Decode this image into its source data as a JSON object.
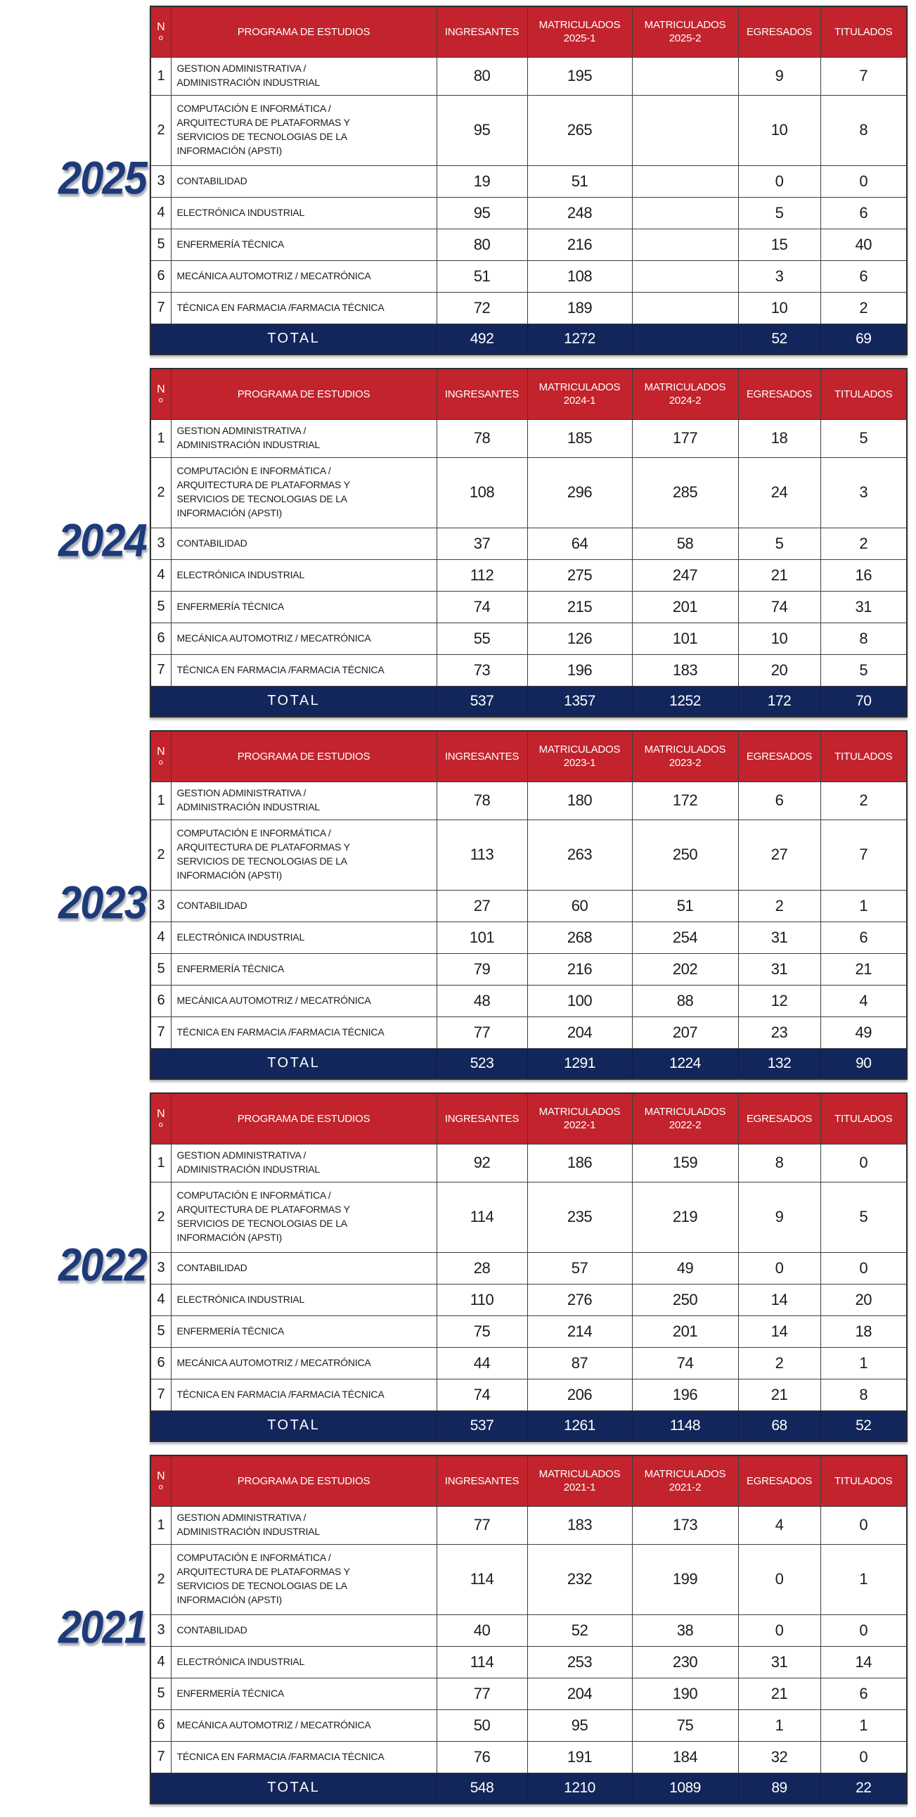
{
  "colors": {
    "header_bg": "#c2232c",
    "header_text": "#ffffff",
    "total_bg": "#13265b",
    "total_text": "#ffffff",
    "year_label": "#1d3a7a",
    "cell_text": "#1b1b1b",
    "border": "#3d3d3d"
  },
  "no_header": "N\no",
  "row_numbers": [
    "1",
    "2",
    "3",
    "4",
    "5",
    "6",
    "7"
  ],
  "programs": [
    "GESTION ADMINISTRATIVA /\nADMINISTRACIÓN INDUSTRIAL",
    "COMPUTACIÓN E INFORMÁTICA /\nARQUITECTURA DE PLATAFORMAS Y\nSERVICIOS DE TECNOLOGIAS DE LA\nINFORMACIÓN (APSTI)",
    "CONTABILIDAD",
    "ELECTRÓNICA INDUSTRIAL",
    "ENFERMERÍA TÉCNICA",
    "MECÁNICA AUTOMOTRIZ / MECATRÓNICA",
    "TÉCNICA EN FARMACIA /FARMACIA TÉCNICA"
  ],
  "tables": [
    {
      "year": "2025",
      "headers": [
        "PROGRAMA DE ESTUDIOS",
        "INGRESANTES",
        "MATRICULADOS\n2025-1",
        "MATRICULADOS\n2025-2",
        "EGRESADOS",
        "TITULADOS"
      ],
      "rows": [
        [
          "80",
          "195",
          "",
          "9",
          "7"
        ],
        [
          "95",
          "265",
          "",
          "10",
          "8"
        ],
        [
          "19",
          "51",
          "",
          "0",
          "0"
        ],
        [
          "95",
          "248",
          "",
          "5",
          "6"
        ],
        [
          "80",
          "216",
          "",
          "15",
          "40"
        ],
        [
          "51",
          "108",
          "",
          "3",
          "6"
        ],
        [
          "72",
          "189",
          "",
          "10",
          "2"
        ]
      ],
      "total_label": "TOTAL",
      "total_values": [
        "492",
        "1272",
        "",
        "52",
        "69"
      ]
    },
    {
      "year": "2024",
      "headers": [
        "PROGRAMA DE ESTUDIOS",
        "INGRESANTES",
        "MATRICULADOS\n2024-1",
        "MATRICULADOS\n2024-2",
        "EGRESADOS",
        "TITULADOS"
      ],
      "rows": [
        [
          "78",
          "185",
          "177",
          "18",
          "5"
        ],
        [
          "108",
          "296",
          "285",
          "24",
          "3"
        ],
        [
          "37",
          "64",
          "58",
          "5",
          "2"
        ],
        [
          "112",
          "275",
          "247",
          "21",
          "16"
        ],
        [
          "74",
          "215",
          "201",
          "74",
          "31"
        ],
        [
          "55",
          "126",
          "101",
          "10",
          "8"
        ],
        [
          "73",
          "196",
          "183",
          "20",
          "5"
        ]
      ],
      "total_label": "TOTAL",
      "total_values": [
        "537",
        "1357",
        "1252",
        "172",
        "70"
      ]
    },
    {
      "year": "2023",
      "headers": [
        "PROGRAMA DE ESTUDIOS",
        "INGRESANTES",
        "MATRICULADOS\n2023-1",
        "MATRICULADOS\n2023-2",
        "EGRESADOS",
        "TITULADOS"
      ],
      "rows": [
        [
          "78",
          "180",
          "172",
          "6",
          "2"
        ],
        [
          "113",
          "263",
          "250",
          "27",
          "7"
        ],
        [
          "27",
          "60",
          "51",
          "2",
          "1"
        ],
        [
          "101",
          "268",
          "254",
          "31",
          "6"
        ],
        [
          "79",
          "216",
          "202",
          "31",
          "21"
        ],
        [
          "48",
          "100",
          "88",
          "12",
          "4"
        ],
        [
          "77",
          "204",
          "207",
          "23",
          "49"
        ]
      ],
      "total_label": "TOTAL",
      "total_values": [
        "523",
        "1291",
        "1224",
        "132",
        "90"
      ]
    },
    {
      "year": "2022",
      "headers": [
        "PROGRAMA DE ESTUDIOS",
        "INGRESANTES",
        "MATRICULADOS\n2022-1",
        "MATRICULADOS\n2022-2",
        "EGRESADOS",
        "TITULADOS"
      ],
      "rows": [
        [
          "92",
          "186",
          "159",
          "8",
          "0"
        ],
        [
          "114",
          "235",
          "219",
          "9",
          "5"
        ],
        [
          "28",
          "57",
          "49",
          "0",
          "0"
        ],
        [
          "110",
          "276",
          "250",
          "14",
          "20"
        ],
        [
          "75",
          "214",
          "201",
          "14",
          "18"
        ],
        [
          "44",
          "87",
          "74",
          "2",
          "1"
        ],
        [
          "74",
          "206",
          "196",
          "21",
          "8"
        ]
      ],
      "total_label": "TOTAL",
      "total_values": [
        "537",
        "1261",
        "1148",
        "68",
        "52"
      ]
    },
    {
      "year": "2021",
      "headers": [
        "PROGRAMA DE ESTUDIOS",
        "INGRESANTES",
        "MATRICULADOS\n2021-1",
        "MATRICULADOS\n2021-2",
        "EGRESADOS",
        "TITULADOS"
      ],
      "rows": [
        [
          "77",
          "183",
          "173",
          "4",
          "0"
        ],
        [
          "114",
          "232",
          "199",
          "0",
          "1"
        ],
        [
          "40",
          "52",
          "38",
          "0",
          "0"
        ],
        [
          "114",
          "253",
          "230",
          "31",
          "14"
        ],
        [
          "77",
          "204",
          "190",
          "21",
          "6"
        ],
        [
          "50",
          "95",
          "75",
          "1",
          "1"
        ],
        [
          "76",
          "191",
          "184",
          "32",
          "0"
        ]
      ],
      "total_label": "TOTAL",
      "total_values": [
        "548",
        "1210",
        "1089",
        "89",
        "22"
      ]
    }
  ]
}
